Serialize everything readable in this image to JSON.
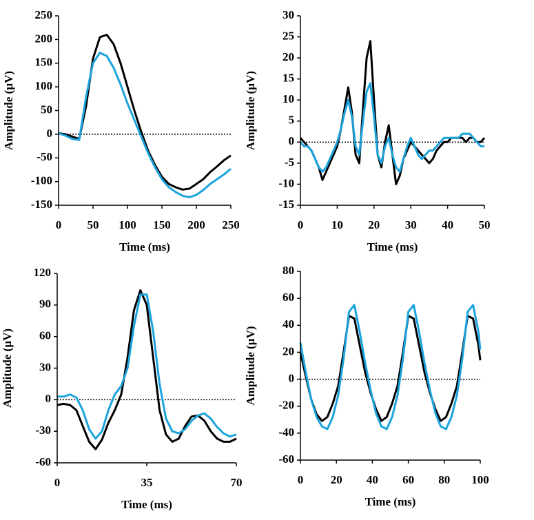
{
  "chart_data": [
    {
      "type": "line",
      "xlabel": "Time (ms)",
      "ylabel": "Amplitude (µV)",
      "x": [
        0,
        10,
        20,
        30,
        40,
        50,
        60,
        70,
        80,
        90,
        100,
        110,
        120,
        130,
        140,
        150,
        160,
        170,
        180,
        190,
        200,
        210,
        220,
        230,
        240,
        250
      ],
      "series": [
        {
          "color": "#000000",
          "values": [
            2,
            0,
            -5,
            -10,
            60,
            160,
            205,
            210,
            190,
            150,
            100,
            50,
            5,
            -35,
            -65,
            -90,
            -105,
            -112,
            -117,
            -115,
            -105,
            -95,
            -80,
            -68,
            -55,
            -45
          ]
        },
        {
          "color": "#1ba3dc",
          "values": [
            2,
            -3,
            -10,
            -12,
            80,
            150,
            172,
            165,
            140,
            105,
            65,
            30,
            -5,
            -40,
            -70,
            -95,
            -112,
            -122,
            -130,
            -133,
            -128,
            -118,
            -105,
            -95,
            -85,
            -73
          ]
        }
      ],
      "xlim": [
        0,
        250
      ],
      "xticks": [
        0,
        50,
        100,
        150,
        200,
        250
      ],
      "ylim": [
        -150,
        250
      ],
      "yticks": [
        -150,
        -100,
        -50,
        0,
        50,
        100,
        150,
        200,
        250
      ]
    },
    {
      "type": "line",
      "xlabel": "Time (ms)",
      "ylabel": "Amplitude (µV)",
      "x": [
        0,
        1,
        2,
        3,
        4,
        5,
        6,
        7,
        8,
        9,
        10,
        11,
        12,
        13,
        14,
        15,
        16,
        17,
        18,
        19,
        20,
        21,
        22,
        23,
        24,
        25,
        26,
        27,
        28,
        29,
        30,
        31,
        32,
        33,
        34,
        35,
        36,
        37,
        38,
        39,
        40,
        41,
        42,
        43,
        44,
        45,
        46,
        47,
        48,
        49,
        50
      ],
      "series": [
        {
          "color": "#000000",
          "values": [
            1,
            0,
            -1,
            -2,
            -4,
            -6,
            -9,
            -7,
            -5,
            -3,
            -1,
            3,
            8,
            13,
            7,
            -3,
            -5,
            8,
            20,
            24,
            10,
            -3,
            -6,
            0,
            4,
            -3,
            -10,
            -8,
            -4,
            -2,
            0,
            -1,
            -2,
            -3,
            -4,
            -5,
            -4,
            -2,
            -1,
            0,
            0,
            1,
            1,
            1,
            1,
            0,
            1,
            1,
            0,
            0,
            1
          ]
        },
        {
          "color": "#1ba3dc",
          "values": [
            0,
            -1,
            -1,
            -2,
            -4,
            -6,
            -7,
            -6,
            -4,
            -2,
            0,
            3,
            7,
            10,
            6,
            -1,
            -3,
            5,
            12,
            14,
            6,
            -3,
            -5,
            -1,
            1,
            -3,
            -6,
            -7,
            -4,
            -1,
            1,
            -1,
            -3,
            -4,
            -3,
            -2,
            -2,
            -1,
            0,
            1,
            1,
            1,
            1,
            1,
            2,
            2,
            2,
            1,
            0,
            -1,
            -1
          ]
        }
      ],
      "xlim": [
        0,
        50
      ],
      "xticks": [
        0,
        10,
        20,
        30,
        40,
        50
      ],
      "ylim": [
        -15,
        30
      ],
      "yticks": [
        -15,
        -10,
        -5,
        0,
        5,
        10,
        15,
        20,
        25,
        30
      ]
    },
    {
      "type": "line",
      "xlabel": "Time (ms)",
      "ylabel": "Amplitude (µV)",
      "x": [
        0,
        2.5,
        5,
        7.5,
        10,
        12.5,
        15,
        17.5,
        20,
        22.5,
        25,
        27.5,
        30,
        32.5,
        35,
        37.5,
        40,
        42.5,
        45,
        47.5,
        50,
        52.5,
        55,
        57.5,
        60,
        62.5,
        65,
        67.5,
        70
      ],
      "series": [
        {
          "color": "#000000",
          "values": [
            -5,
            -4,
            -5,
            -10,
            -25,
            -40,
            -47,
            -38,
            -22,
            -10,
            5,
            40,
            85,
            104,
            90,
            40,
            -10,
            -33,
            -40,
            -37,
            -25,
            -16,
            -15,
            -20,
            -30,
            -37,
            -40,
            -40,
            -37
          ]
        },
        {
          "color": "#1ba3dc",
          "values": [
            3,
            3,
            5,
            2,
            -10,
            -28,
            -37,
            -30,
            -10,
            5,
            13,
            30,
            70,
            100,
            100,
            65,
            15,
            -18,
            -30,
            -32,
            -28,
            -20,
            -15,
            -13,
            -18,
            -26,
            -32,
            -35,
            -33
          ]
        }
      ],
      "xlim": [
        0,
        70
      ],
      "xticks": [
        0,
        35,
        70
      ],
      "ylim": [
        -60,
        120
      ],
      "yticks": [
        -60,
        -30,
        0,
        30,
        60,
        90,
        120
      ]
    },
    {
      "type": "line",
      "xlabel": "Time (ms)",
      "ylabel": "Amplitude (µV)",
      "x": [
        0,
        3,
        6,
        9,
        12,
        15,
        18,
        21,
        24,
        27,
        30,
        33,
        36,
        39,
        42,
        45,
        48,
        51,
        54,
        57,
        60,
        63,
        66,
        69,
        72,
        75,
        78,
        81,
        84,
        87,
        90,
        93,
        96,
        99,
        100
      ],
      "series": [
        {
          "color": "#000000",
          "values": [
            20,
            2,
            -15,
            -26,
            -31,
            -28,
            -18,
            -5,
            20,
            47,
            45,
            25,
            5,
            -10,
            -22,
            -31,
            -28,
            -18,
            -5,
            20,
            47,
            45,
            25,
            5,
            -10,
            -22,
            -31,
            -28,
            -18,
            -5,
            20,
            47,
            45,
            25,
            14
          ]
        },
        {
          "color": "#1ba3dc",
          "values": [
            27,
            5,
            -15,
            -28,
            -35,
            -37,
            -28,
            -12,
            15,
            50,
            55,
            35,
            12,
            -8,
            -25,
            -35,
            -37,
            -28,
            -12,
            15,
            50,
            55,
            35,
            12,
            -8,
            -25,
            -35,
            -37,
            -28,
            -12,
            15,
            50,
            55,
            35,
            22
          ]
        }
      ],
      "xlim": [
        0,
        100
      ],
      "xticks": [
        0,
        20,
        40,
        60,
        80,
        100
      ],
      "ylim": [
        -60,
        80
      ],
      "yticks": [
        -60,
        -40,
        -20,
        0,
        20,
        40,
        60,
        80
      ]
    }
  ]
}
